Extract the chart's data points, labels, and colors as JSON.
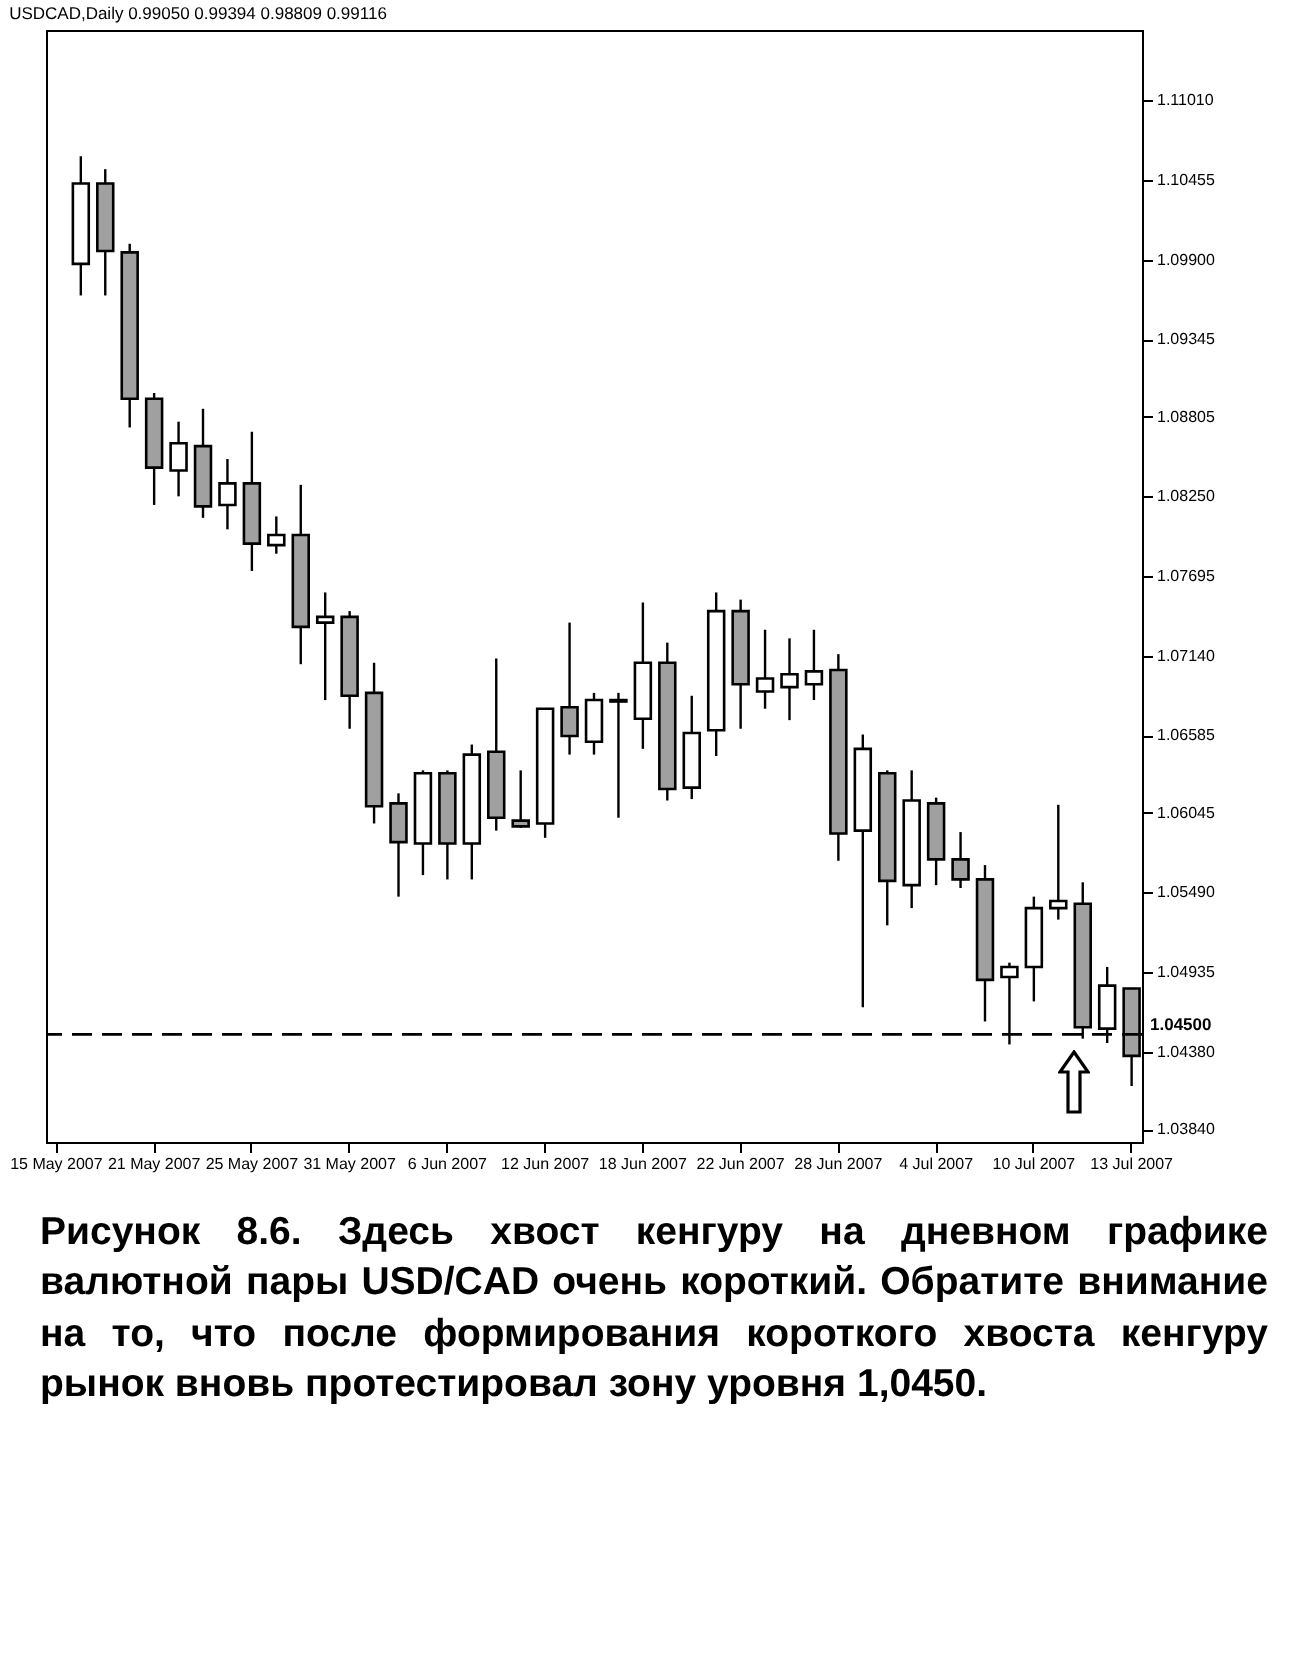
{
  "chart_data": {
    "type": "candlestick",
    "title": "USDCAD,Daily 0.99050 0.99394 0.98809 0.99116",
    "categories": [
      "15 May 2007",
      null,
      null,
      null,
      "21 May 2007",
      null,
      null,
      null,
      "25 May 2007",
      null,
      null,
      null,
      "31 May 2007",
      null,
      null,
      null,
      "6 Jun 2007",
      null,
      null,
      null,
      "12 Jun 2007",
      null,
      null,
      null,
      "18 Jun 2007",
      null,
      null,
      null,
      "22 Jun 2007",
      null,
      null,
      null,
      "28 Jun 2007",
      null,
      null,
      null,
      "4 Jul 2007",
      null,
      null,
      null,
      "10 Jul 2007",
      null,
      null,
      null,
      "13 Jul 2007"
    ],
    "ohlc": [
      null,
      [
        1.0987,
        1.1062,
        1.0965,
        1.1043
      ],
      [
        1.1043,
        1.1053,
        1.0965,
        1.0996
      ],
      [
        1.0995,
        1.1001,
        1.0873,
        1.0893
      ],
      [
        1.0893,
        1.0897,
        1.0819,
        1.0845
      ],
      [
        1.0843,
        1.0877,
        1.0825,
        1.0862
      ],
      [
        1.086,
        1.0886,
        1.081,
        1.0818
      ],
      [
        1.0819,
        1.0851,
        1.0802,
        1.0834
      ],
      [
        1.0834,
        1.087,
        1.0773,
        1.0792
      ],
      [
        1.0791,
        1.0811,
        1.0785,
        1.0798
      ],
      [
        1.0798,
        1.0833,
        1.0708,
        1.0734
      ],
      [
        1.0737,
        1.0758,
        1.0683,
        1.0741
      ],
      [
        1.0741,
        1.0745,
        1.0663,
        1.0686
      ],
      [
        1.0688,
        1.0709,
        1.0597,
        1.0609
      ],
      [
        1.0611,
        1.0618,
        1.0546,
        1.0584
      ],
      [
        1.0583,
        1.0634,
        1.0561,
        1.0632
      ],
      [
        1.0632,
        1.0634,
        1.0558,
        1.0583
      ],
      [
        1.0583,
        1.0652,
        1.0558,
        1.0645
      ],
      [
        1.0647,
        1.0712,
        1.0592,
        1.0601
      ],
      [
        1.0599,
        1.0634,
        1.0594,
        1.0595
      ],
      [
        1.0597,
        1.0677,
        1.0587,
        1.0677
      ],
      [
        1.0678,
        1.0737,
        1.0645,
        1.0658
      ],
      [
        1.0654,
        1.0688,
        1.0645,
        1.0683
      ],
      [
        1.0682,
        1.0688,
        1.0601,
        1.0683
      ],
      [
        1.067,
        1.0751,
        1.0649,
        1.0709
      ],
      [
        1.0709,
        1.0723,
        1.0613,
        1.0621
      ],
      [
        1.0622,
        1.0686,
        1.0614,
        1.066
      ],
      [
        1.0662,
        1.0758,
        1.0644,
        1.0745
      ],
      [
        1.0745,
        1.0753,
        1.0663,
        1.0694
      ],
      [
        1.0689,
        1.0732,
        1.0677,
        1.0698
      ],
      [
        1.0692,
        1.0726,
        1.0669,
        1.0701
      ],
      [
        1.0694,
        1.0732,
        1.0683,
        1.0703
      ],
      [
        1.0704,
        1.0715,
        1.0571,
        1.059
      ],
      [
        1.0592,
        1.0659,
        1.0469,
        1.0649
      ],
      [
        1.0632,
        1.0634,
        1.0526,
        1.0557
      ],
      [
        1.0554,
        1.0634,
        1.0538,
        1.0613
      ],
      [
        1.0611,
        1.0615,
        1.0554,
        1.0572
      ],
      [
        1.0572,
        1.0591,
        1.0552,
        1.0558
      ],
      [
        1.0558,
        1.0568,
        1.0459,
        1.0488
      ],
      [
        1.049,
        1.05,
        1.0443,
        1.0497
      ],
      [
        1.0497,
        1.0546,
        1.0473,
        1.0538
      ],
      [
        1.0538,
        1.061,
        1.053,
        1.0543
      ],
      [
        1.0541,
        1.0556,
        1.0447,
        1.0455
      ],
      [
        1.0454,
        1.0497,
        1.0444,
        1.0484
      ],
      [
        1.0482,
        1.0482,
        1.0414,
        1.0435
      ]
    ],
    "colors": [
      null,
      "#ffffff",
      "#a0a0a0",
      "#a0a0a0",
      "#a0a0a0",
      "#ffffff",
      "#a0a0a0",
      "#ffffff",
      "#a0a0a0",
      "#ffffff",
      "#a0a0a0",
      "#ffffff",
      "#a0a0a0",
      "#a0a0a0",
      "#a0a0a0",
      "#ffffff",
      "#a0a0a0",
      "#ffffff",
      "#a0a0a0",
      "#a0a0a0",
      "#ffffff",
      "#a0a0a0",
      "#ffffff",
      "#ffffff",
      "#ffffff",
      "#a0a0a0",
      "#ffffff",
      "#ffffff",
      "#a0a0a0",
      "#ffffff",
      "#ffffff",
      "#ffffff",
      "#a0a0a0",
      "#ffffff",
      "#a0a0a0",
      "#ffffff",
      "#a0a0a0",
      "#a0a0a0",
      "#a0a0a0",
      "#ffffff",
      "#ffffff",
      "#ffffff",
      "#a0a0a0",
      "#ffffff",
      "#a0a0a0"
    ],
    "ylim": [
      1.0375,
      1.115
    ],
    "yticks": [
      {
        "value": 1.1101,
        "label": "1.11010"
      },
      {
        "value": 1.10455,
        "label": "1.10455"
      },
      {
        "value": 1.099,
        "label": "1.09900"
      },
      {
        "value": 1.09345,
        "label": "1.09345"
      },
      {
        "value": 1.08805,
        "label": "1.08805"
      },
      {
        "value": 1.0825,
        "label": "1.08250"
      },
      {
        "value": 1.07695,
        "label": "1.07695"
      },
      {
        "value": 1.0714,
        "label": "1.07140"
      },
      {
        "value": 1.06585,
        "label": "1.06585"
      },
      {
        "value": 1.06045,
        "label": "1.06045"
      },
      {
        "value": 1.0549,
        "label": "1.05490"
      },
      {
        "value": 1.04935,
        "label": "1.04935"
      },
      {
        "value": 1.0438,
        "label": "1.04380"
      },
      {
        "value": 1.0384,
        "label": "1.03840"
      }
    ],
    "ref_lines": [
      {
        "axis": "y",
        "value": 1.045,
        "label": "1.04500",
        "color": "#000000",
        "line_style": "dashed"
      }
    ],
    "grid": false,
    "annotations": [
      "Рисунок 8.6. Здесь хвост кенгуру на дневном графике валютной пары USD/CAD очень короткий. Обратите внимание на то, что после формирования короткого хвоста кенгуру рынок вновь протестировал зону уровня 1,0450."
    ]
  }
}
